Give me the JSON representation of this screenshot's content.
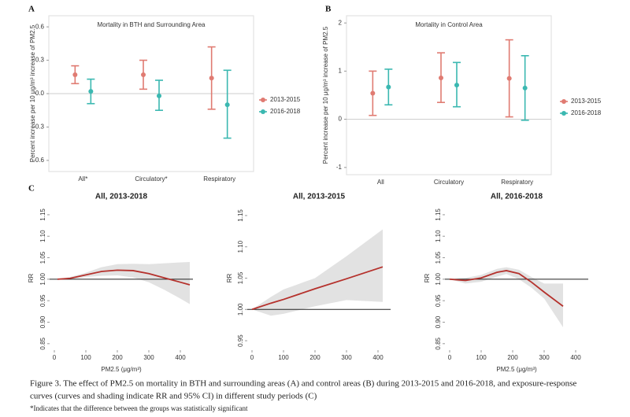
{
  "chart_data": [
    {
      "type": "errorbar",
      "panel_label": "A",
      "title": "Mortality in BTH and Surrounding Area",
      "y_label": "Percent increase per 10 μg/m³ increase of PM2.5",
      "categories": [
        "All*",
        "Circulatory*",
        "Respiratory"
      ],
      "series": [
        {
          "name": "2013-2015",
          "color": "#e07b72",
          "values": [
            0.17,
            0.17,
            0.14
          ],
          "lower": [
            0.09,
            0.04,
            -0.14
          ],
          "upper": [
            0.25,
            0.3,
            0.42
          ]
        },
        {
          "name": "2016-2018",
          "color": "#3bb8b1",
          "values": [
            0.02,
            -0.02,
            -0.1
          ],
          "lower": [
            -0.09,
            -0.15,
            -0.4
          ],
          "upper": [
            0.13,
            0.12,
            0.21
          ]
        }
      ],
      "ylim": [
        -0.7,
        0.7
      ],
      "yticks": [
        -0.6,
        -0.3,
        {
          "value": 0,
          "label": "0.0"
        },
        0.3,
        0.6
      ],
      "hline": 0
    },
    {
      "type": "errorbar",
      "panel_label": "B",
      "title": "Mortality in Control Area",
      "y_label": "Percent increase per 10 μg/m³ increase of PM2.5",
      "categories": [
        "All",
        "Circulatory",
        "Respiratory"
      ],
      "series": [
        {
          "name": "2013-2015",
          "color": "#e07b72",
          "values": [
            0.54,
            0.86,
            0.85
          ],
          "lower": [
            0.08,
            0.35,
            0.05
          ],
          "upper": [
            1.0,
            1.38,
            1.65
          ]
        },
        {
          "name": "2016-2018",
          "color": "#3bb8b1",
          "values": [
            0.67,
            0.71,
            0.65
          ],
          "lower": [
            0.3,
            0.26,
            -0.02
          ],
          "upper": [
            1.04,
            1.18,
            1.32
          ]
        }
      ],
      "ylim": [
        -1.15,
        2.15
      ],
      "yticks": [
        -1,
        0,
        1,
        2
      ],
      "hline": 0
    },
    {
      "type": "line",
      "panel_label": "C",
      "title": "All, 2013-2018",
      "y_label": "RR",
      "x_label": "PM2.5 (μg/m³)",
      "x": [
        10,
        50,
        100,
        150,
        200,
        250,
        300,
        350,
        400,
        430
      ],
      "series": [
        {
          "color": "#b5312c",
          "band_color": "#e2e2e2",
          "values": [
            1.0,
            1.002,
            1.01,
            1.018,
            1.021,
            1.02,
            1.013,
            1.003,
            0.993,
            0.987
          ],
          "lower": [
            1.0,
            0.999,
            1.005,
            1.008,
            1.009,
            1.004,
            0.993,
            0.975,
            0.955,
            0.942
          ],
          "upper": [
            1.0,
            1.005,
            1.015,
            1.028,
            1.035,
            1.036,
            1.035,
            1.037,
            1.039,
            1.04
          ]
        }
      ],
      "xlim": [
        -15,
        440
      ],
      "xticks": [
        0,
        100,
        200,
        300,
        400
      ],
      "ylim": [
        0.835,
        1.17
      ],
      "yticks": [
        0.85,
        {
          "value": 0.9,
          "label": "0.90"
        },
        0.95,
        {
          "value": 1,
          "label": "1.00"
        },
        1.05,
        {
          "value": 1.1,
          "label": "1.10"
        },
        1.15
      ],
      "hline": 1
    },
    {
      "type": "line",
      "title": "All, 2013-2015",
      "y_label": "RR",
      "x": [
        0,
        60,
        100,
        200,
        300,
        415
      ],
      "series": [
        {
          "color": "#b5312c",
          "band_color": "#e2e2e2",
          "values": [
            1.0,
            1.01,
            1.016,
            1.033,
            1.049,
            1.068
          ],
          "lower": [
            1.0,
            0.99,
            0.993,
            1.005,
            1.015,
            1.012
          ],
          "upper": [
            1.0,
            1.02,
            1.032,
            1.05,
            1.085,
            1.128
          ]
        }
      ],
      "xlim": [
        -15,
        440
      ],
      "xticks": [
        0,
        100,
        200,
        300,
        400
      ],
      "ylim": [
        0.935,
        1.165
      ],
      "yticks": [
        0.95,
        {
          "value": 1,
          "label": "1.00"
        },
        1.05,
        {
          "value": 1.1,
          "label": "1.10"
        },
        1.15
      ],
      "hline": 1
    },
    {
      "type": "line",
      "title": "All, 2016-2018",
      "y_label": "RR",
      "x_label": "PM2.5 (μg/m³)",
      "x": [
        0,
        50,
        100,
        150,
        180,
        220,
        260,
        300,
        360
      ],
      "series": [
        {
          "color": "#b5312c",
          "band_color": "#e2e2e2",
          "values": [
            1.0,
            0.997,
            1.003,
            1.016,
            1.02,
            1.013,
            0.993,
            0.97,
            0.937
          ],
          "lower": [
            1.0,
            0.99,
            0.994,
            1.006,
            1.012,
            1.0,
            0.98,
            0.955,
            0.888
          ],
          "upper": [
            1.0,
            1.003,
            1.01,
            1.024,
            1.028,
            1.022,
            1.005,
            0.99,
            0.99
          ]
        }
      ],
      "xlim": [
        -15,
        440
      ],
      "xticks": [
        0,
        100,
        200,
        300,
        400
      ],
      "ylim": [
        0.835,
        1.17
      ],
      "yticks": [
        0.85,
        {
          "value": 0.9,
          "label": "0.90"
        },
        0.95,
        {
          "value": 1,
          "label": "1.00"
        },
        1.05,
        {
          "value": 1.1,
          "label": "1.10"
        },
        1.15
      ],
      "hline": 1
    }
  ],
  "caption": [
    "Figure 3. The effect of PM2.5 on mortality in BTH and surrounding areas (A) and control areas (B) during 2013-2015 and 2016-2018, and exposure-response",
    "curves (curves and shading indicate RR and 95% CI) in different study periods (C)"
  ],
  "note": "*Indicates that the difference between the groups was statistically significant"
}
